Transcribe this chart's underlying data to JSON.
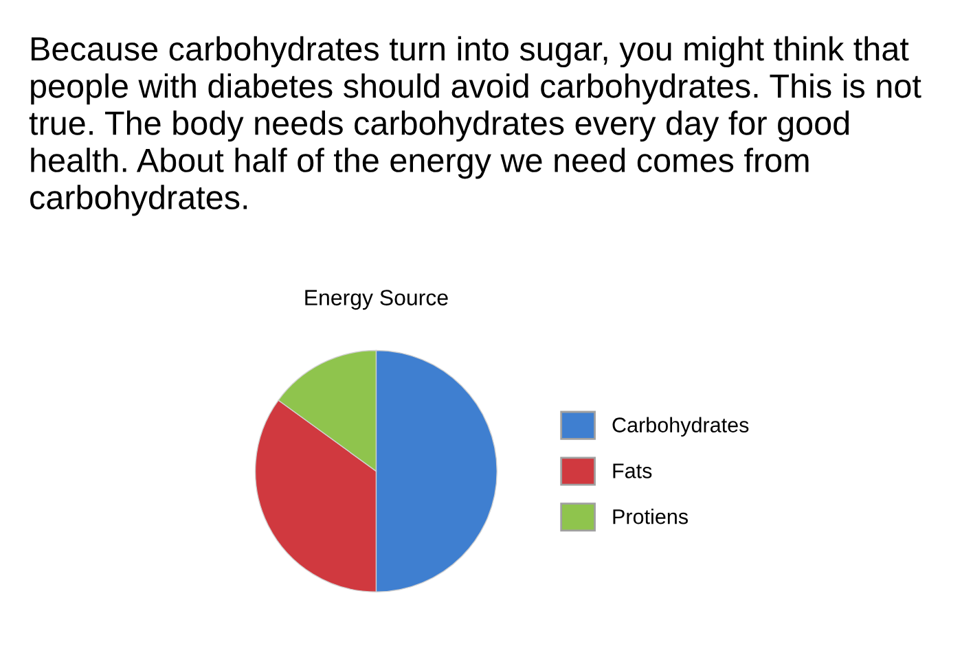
{
  "chart_data": {
    "type": "pie",
    "title": "Energy Source",
    "annotations": [
      "Because carbohydrates turn into sugar, you might think that people with diabetes should avoid carbohydrates. This is not true. The body needs carbohydrates every day for good health. About half of the energy we need comes from carbohydrates."
    ],
    "categories": [
      "Carbohydrates",
      "Fats",
      "Protiens"
    ],
    "values": [
      50,
      35,
      15
    ],
    "colors": [
      "#3f7fd0",
      "#d0393f",
      "#8fc44d"
    ],
    "legend": "right"
  }
}
